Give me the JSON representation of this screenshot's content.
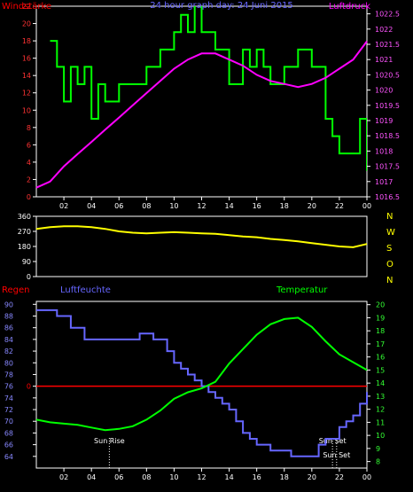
{
  "chart_data": [
    {
      "type": "line",
      "title": "24 hour graph day: 24 Juni 2015",
      "left_axis_label": "Windstärke",
      "right_axis_label": "Luftdruck",
      "x_tick_labels": [
        "02",
        "04",
        "06",
        "08",
        "10",
        "12",
        "14",
        "16",
        "18",
        "20",
        "22",
        "00"
      ],
      "left_ticks": [
        0,
        2,
        4,
        6,
        8,
        10,
        12,
        14,
        16,
        18,
        20,
        22
      ],
      "left_ylim": [
        0,
        22
      ],
      "right_ticks": [
        "1016.5",
        "1017",
        "1017.5",
        "1018",
        "1018.5",
        "1019",
        "1019.5",
        "1020",
        "1020.5",
        "1021",
        "1021.5",
        "1022",
        "1022.5"
      ],
      "right_ylim": [
        1016.5,
        1022.75
      ],
      "colors": {
        "wind": "#00ff00",
        "pressure": "#ff00ff",
        "left_label": "#ff0000",
        "right_label": "#ff00ff",
        "title": "#6666ff"
      },
      "series": [
        {
          "axis": "left",
          "type": "step",
          "x": [
            1.0,
            1.5,
            2.0,
            2.5,
            3.0,
            3.5,
            4.0,
            4.5,
            5.0,
            6.0,
            7.0,
            8.0,
            9.0,
            10.0,
            10.5,
            11.0,
            11.5,
            12.0,
            13.0,
            14.0,
            15.0,
            15.5,
            16.0,
            16.5,
            17.0,
            18.0,
            19.0,
            20.0,
            21.0,
            21.5,
            22.0,
            23.0,
            23.5,
            24.0
          ],
          "y": [
            18,
            15,
            11,
            15,
            13,
            15,
            9,
            13,
            11,
            13,
            13,
            15,
            17,
            19,
            21,
            19,
            23,
            19,
            17,
            13,
            17,
            15,
            17,
            15,
            13,
            15,
            17,
            15,
            9,
            7,
            5,
            5,
            9,
            3
          ]
        },
        {
          "axis": "right",
          "type": "line",
          "x": [
            0,
            1,
            2,
            3,
            4,
            5,
            6,
            7,
            8,
            9,
            10,
            11,
            12,
            13,
            14,
            15,
            16,
            17,
            18,
            19,
            20,
            21,
            22,
            23,
            24
          ],
          "y": [
            1016.8,
            1017.0,
            1017.5,
            1017.9,
            1018.3,
            1018.7,
            1019.1,
            1019.5,
            1019.9,
            1020.3,
            1020.7,
            1021.0,
            1021.2,
            1021.2,
            1021.0,
            1020.8,
            1020.5,
            1020.3,
            1020.2,
            1020.1,
            1020.2,
            1020.4,
            1020.7,
            1021.0,
            1021.6
          ]
        }
      ]
    },
    {
      "type": "line",
      "left_ticks": [
        0,
        90,
        180,
        270,
        360
      ],
      "ylim": [
        0,
        360
      ],
      "compass_labels": [
        "N",
        "W",
        "S",
        "O",
        "N"
      ],
      "colors": {
        "direction": "#ffff00",
        "compass": "#ffff00"
      },
      "series": [
        {
          "x": [
            0,
            1,
            2,
            3,
            4,
            5,
            6,
            7,
            8,
            9,
            10,
            11,
            12,
            13,
            14,
            15,
            16,
            17,
            18,
            19,
            20,
            21,
            22,
            23,
            24
          ],
          "y": [
            285,
            295,
            300,
            300,
            295,
            285,
            270,
            262,
            258,
            262,
            265,
            262,
            258,
            255,
            248,
            240,
            235,
            225,
            218,
            210,
            200,
            190,
            180,
            175,
            195
          ]
        }
      ]
    },
    {
      "type": "line",
      "left_axis_label": "Regen",
      "middle_axis_label": "Luftfeuchte",
      "right_axis_label": "Temperatur",
      "x_tick_labels": [
        "02",
        "04",
        "06",
        "08",
        "10",
        "12",
        "14",
        "16",
        "18",
        "20",
        "22",
        "00"
      ],
      "humidity_ticks": [
        64,
        66,
        68,
        70,
        72,
        74,
        76,
        78,
        80,
        82,
        84,
        86,
        88,
        90
      ],
      "humidity_ylim": [
        62,
        90.5
      ],
      "temp_ticks": [
        8,
        9,
        10,
        11,
        12,
        13,
        14,
        15,
        16,
        17,
        18,
        19,
        20
      ],
      "temp_ylim": [
        7.5,
        20.25
      ],
      "rain_zero_label": "0",
      "annotations": [
        {
          "text": "Sun Rise",
          "x": 5.3
        },
        {
          "text": "Sun Set",
          "x": 21.5
        },
        {
          "text": "Sun Set",
          "x": 21.8
        }
      ],
      "colors": {
        "humidity": "#6666ff",
        "temperature": "#00ff00",
        "rain": "#ff0000",
        "left_label": "#ff0000",
        "middle_label": "#6666ff",
        "right_label": "#00ff00"
      },
      "series": [
        {
          "name": "Luftfeuchte",
          "axis": "humidity",
          "type": "step",
          "x": [
            0,
            1.5,
            2.5,
            3.5,
            4.5,
            5.5,
            6.5,
            7.5,
            8.5,
            9.5,
            10.0,
            10.5,
            11.0,
            11.5,
            12.0,
            12.5,
            13.0,
            13.5,
            14.0,
            14.5,
            15.0,
            15.5,
            16.0,
            16.5,
            17.0,
            17.5,
            18.0,
            18.5,
            19.0,
            19.5,
            20.0,
            20.5,
            21.0,
            21.5,
            22.0,
            22.5,
            23.0,
            23.5,
            24.0
          ],
          "y": [
            89,
            88,
            86,
            84,
            84,
            84,
            84,
            85,
            84,
            82,
            80,
            79,
            78,
            77,
            76,
            75,
            74,
            73,
            72,
            70,
            68,
            67,
            66,
            66,
            65,
            65,
            65,
            64,
            64,
            64,
            64,
            66,
            67,
            67,
            69,
            70,
            71,
            73,
            75
          ]
        },
        {
          "name": "Temperatur",
          "axis": "temp",
          "type": "line",
          "x": [
            0,
            1,
            2,
            3,
            4,
            5,
            6,
            7,
            8,
            9,
            10,
            11,
            12,
            13,
            14,
            15,
            16,
            17,
            18,
            19,
            20,
            21,
            22,
            23,
            24
          ],
          "y": [
            11.2,
            11.0,
            10.9,
            10.8,
            10.6,
            10.4,
            10.5,
            10.7,
            11.2,
            11.9,
            12.8,
            13.3,
            13.6,
            14.1,
            15.5,
            16.6,
            17.7,
            18.5,
            18.9,
            19.0,
            18.3,
            17.2,
            16.2,
            15.6,
            15.0
          ]
        }
      ]
    }
  ]
}
